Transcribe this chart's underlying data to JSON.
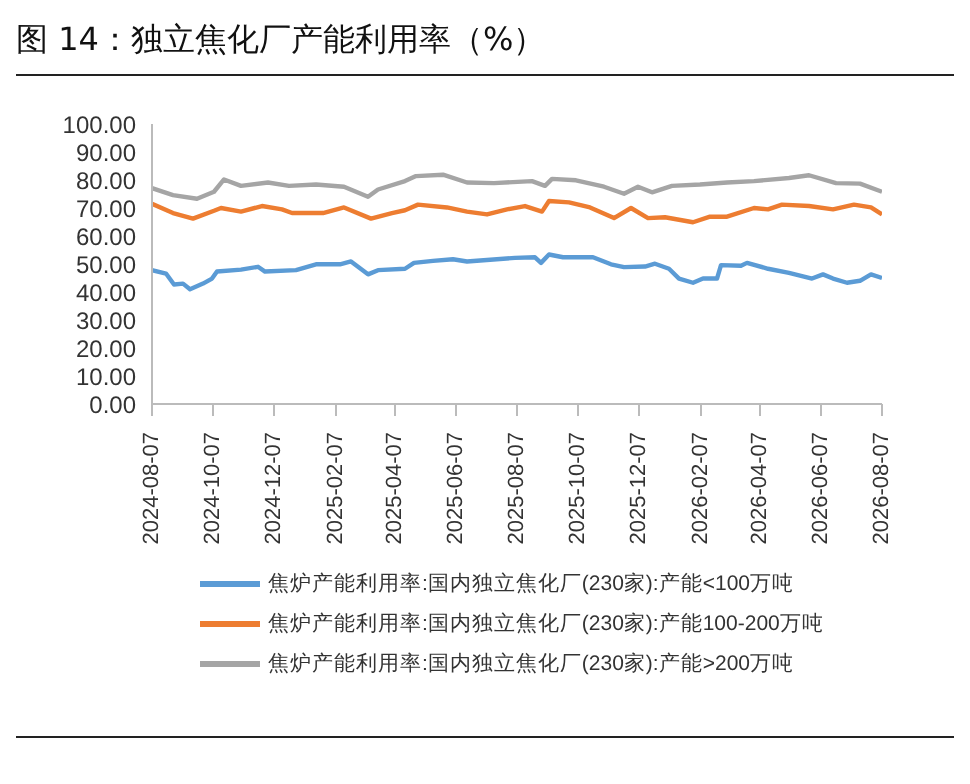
{
  "chart_data": {
    "type": "line",
    "title": "图 14：独立焦化厂产能利用率（%）",
    "xlim": [
      "2024-08-07",
      "2026-08-07"
    ],
    "xticks": [
      "2024-08-07",
      "2024-10-07",
      "2024-12-07",
      "2025-02-07",
      "2025-04-07",
      "2025-06-07",
      "2025-08-07",
      "2025-10-07",
      "2025-12-07",
      "2026-02-07",
      "2026-04-07",
      "2026-06-07",
      "2026-08-07"
    ],
    "ylim": [
      0,
      100
    ],
    "yticks": [
      {
        "value": 0,
        "label": "0.00"
      },
      {
        "value": 10,
        "label": "10.00"
      },
      {
        "value": 20,
        "label": "20.00"
      },
      {
        "value": 30,
        "label": "30.00"
      },
      {
        "value": 40,
        "label": "40.00"
      },
      {
        "value": 50,
        "label": "50.00"
      },
      {
        "value": 60,
        "label": "60.00"
      },
      {
        "value": 70,
        "label": "70.00"
      },
      {
        "value": 80,
        "label": "80.00"
      },
      {
        "value": 90,
        "label": "90.00"
      },
      {
        "value": 100,
        "label": "100.00"
      }
    ],
    "grid": false,
    "legend": "bottom",
    "marker": "none",
    "line_style": "solid",
    "series": [
      {
        "name": "焦炉产能利用率:国内独立焦化厂(230家):产能<100万吨",
        "color": "#5b9bd5",
        "x": [
          "2024-08-07",
          "2024-08-21",
          "2024-08-29",
          "2024-09-07",
          "2024-09-14",
          "2024-09-27",
          "2024-10-06",
          "2024-10-11",
          "2024-11-04",
          "2024-11-21",
          "2024-11-28",
          "2024-12-29",
          "2025-01-18",
          "2025-02-11",
          "2025-02-22",
          "2025-03-11",
          "2025-03-21",
          "2025-04-17",
          "2025-04-26",
          "2025-05-15",
          "2025-06-04",
          "2025-06-18",
          "2025-08-05",
          "2025-08-25",
          "2025-08-31",
          "2025-09-08",
          "2025-09-22",
          "2025-10-22",
          "2025-11-09",
          "2025-11-22",
          "2025-12-13",
          "2025-12-23",
          "2026-01-06",
          "2026-01-16",
          "2026-01-30",
          "2026-02-09",
          "2026-02-23",
          "2026-02-27",
          "2026-03-19",
          "2026-03-25",
          "2026-04-15",
          "2026-05-06",
          "2026-05-29",
          "2026-06-09",
          "2026-06-19",
          "2026-07-03",
          "2026-07-16",
          "2026-07-27",
          "2026-08-07"
        ],
        "values": [
          47.8,
          46.6,
          42.7,
          43,
          41,
          43,
          44.8,
          47.3,
          48,
          49,
          47.3,
          47.8,
          49.9,
          49.9,
          50.9,
          46.3,
          47.8,
          48.3,
          50.4,
          51.1,
          51.7,
          50.9,
          52.2,
          52.4,
          50.4,
          53.4,
          52.4,
          52.4,
          49.9,
          48.9,
          49.1,
          50.1,
          48.3,
          44.8,
          43.3,
          44.8,
          44.8,
          49.6,
          49.4,
          50.4,
          48.3,
          46.8,
          44.8,
          46.3,
          44.8,
          43.3,
          44,
          46.3,
          45
        ]
      },
      {
        "name": "焦炉产能利用率:国内独立焦化厂(230家):产能100-200万吨",
        "color": "#ed7d31",
        "x": [
          "2024-08-07",
          "2024-08-28",
          "2024-09-17",
          "2024-10-08",
          "2024-10-15",
          "2024-11-04",
          "2024-11-25",
          "2024-12-15",
          "2024-12-25",
          "2025-01-25",
          "2025-02-15",
          "2025-03-14",
          "2025-04-04",
          "2025-04-17",
          "2025-04-30",
          "2025-05-29",
          "2025-06-18",
          "2025-07-08",
          "2025-07-28",
          "2025-08-15",
          "2025-09-01",
          "2025-09-08",
          "2025-09-28",
          "2025-10-19",
          "2025-11-12",
          "2025-11-29",
          "2025-12-16",
          "2026-01-02",
          "2026-01-30",
          "2026-02-16",
          "2026-03-05",
          "2026-04-01",
          "2026-04-15",
          "2026-04-29",
          "2026-05-26",
          "2026-06-19",
          "2026-07-10",
          "2026-07-27",
          "2026-08-07"
        ],
        "values": [
          71.5,
          68.2,
          66.2,
          69,
          70,
          68.7,
          70.7,
          69.5,
          68.2,
          68.2,
          70.2,
          66.2,
          68.2,
          69.2,
          71.2,
          70.2,
          68.7,
          67.7,
          69.5,
          70.7,
          68.7,
          72.5,
          72,
          70.2,
          66.4,
          70,
          66.4,
          66.7,
          64.9,
          66.9,
          66.9,
          70,
          69.5,
          71.2,
          70.7,
          69.5,
          71.2,
          70.2,
          67.7
        ]
      },
      {
        "name": "焦炉产能利用率:国内独立焦化厂(230家):产能>200万吨",
        "color": "#a5a5a5",
        "x": [
          "2024-08-07",
          "2024-08-28",
          "2024-09-21",
          "2024-10-08",
          "2024-10-18",
          "2024-11-04",
          "2024-12-01",
          "2024-12-22",
          "2025-01-18",
          "2025-02-15",
          "2025-03-11",
          "2025-03-21",
          "2025-04-17",
          "2025-04-28",
          "2025-05-25",
          "2025-06-18",
          "2025-07-15",
          "2025-08-22",
          "2025-09-04",
          "2025-09-11",
          "2025-10-05",
          "2025-11-02",
          "2025-11-22",
          "2025-12-06",
          "2025-12-20",
          "2026-01-09",
          "2026-02-06",
          "2026-03-05",
          "2026-04-01",
          "2026-05-06",
          "2026-05-26",
          "2026-06-22",
          "2026-07-16",
          "2026-08-07"
        ],
        "values": [
          77.1,
          74.6,
          73.3,
          75.8,
          80.2,
          77.9,
          79.1,
          77.9,
          78.4,
          77.6,
          74,
          76.6,
          79.6,
          81.4,
          81.9,
          79.1,
          78.9,
          79.6,
          77.9,
          80.4,
          79.9,
          77.6,
          75.1,
          77.6,
          75.6,
          77.9,
          78.4,
          79.1,
          79.6,
          80.7,
          81.7,
          78.9,
          78.7,
          75.8
        ]
      }
    ]
  }
}
